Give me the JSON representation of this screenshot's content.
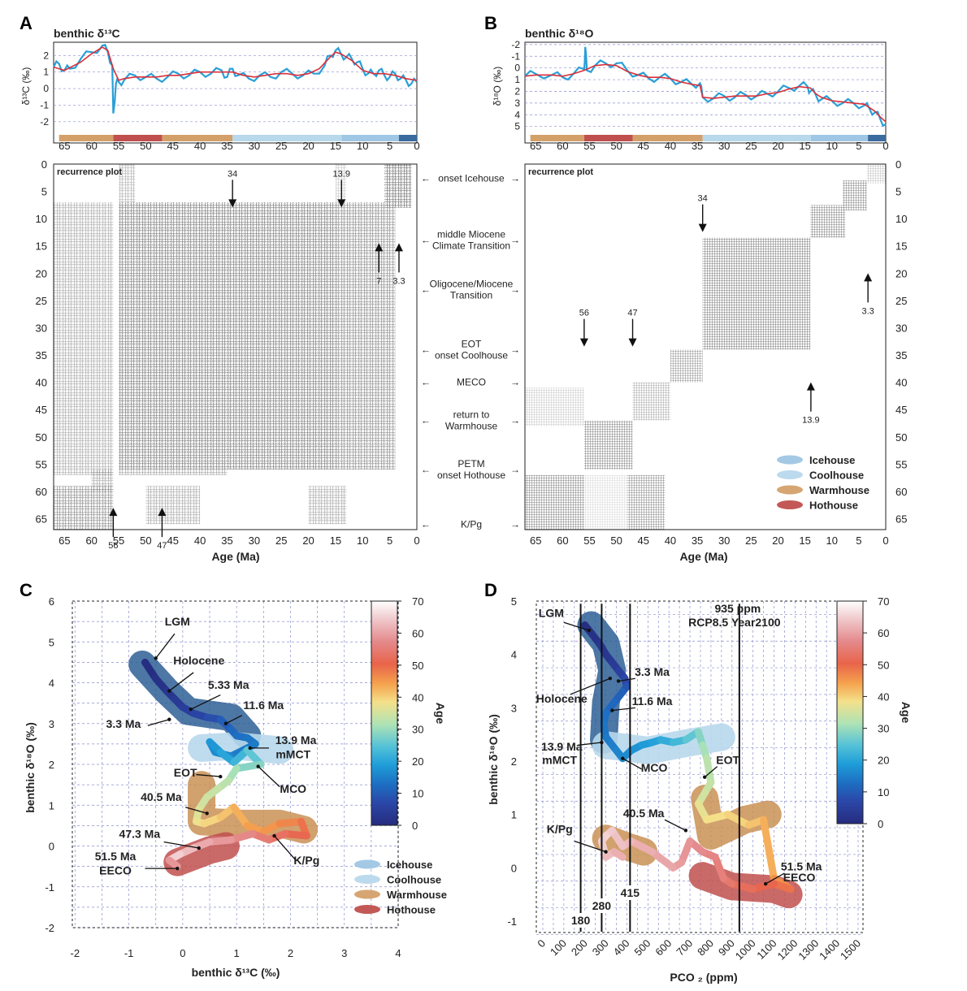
{
  "panels": {
    "A": {
      "label": "A",
      "ts_title": "benthic δ¹³C",
      "ts_ylabel": "δ¹³C (‰)",
      "rp_title": "recurrence plot",
      "xlabel": "Age (Ma)",
      "age_ticks": [
        "65",
        "60",
        "55",
        "50",
        "45",
        "40",
        "35",
        "30",
        "25",
        "20",
        "15",
        "10",
        "5",
        "0"
      ],
      "ts_yticks": [
        "2",
        "1",
        "0",
        "-1",
        "-2"
      ],
      "rp_yticks": [
        "0",
        "5",
        "10",
        "15",
        "20",
        "25",
        "30",
        "35",
        "40",
        "45",
        "50",
        "55",
        "60",
        "65"
      ],
      "arrows": [
        {
          "label": "34",
          "age": 34,
          "dir": "down",
          "y_age": 0.5
        },
        {
          "label": "13.9",
          "age": 13.9,
          "dir": "down",
          "y_age": 0.5
        },
        {
          "label": "7",
          "age": 7,
          "dir": "up",
          "y_age": 14.5
        },
        {
          "label": "3.3",
          "age": 3.3,
          "dir": "up",
          "y_age": 14.5
        },
        {
          "label": "56",
          "age": 56,
          "dir": "up",
          "y_age": 63
        },
        {
          "label": "47",
          "age": 47,
          "dir": "up",
          "y_age": 63
        }
      ]
    },
    "B": {
      "label": "B",
      "ts_title": "benthic δ¹⁸O",
      "ts_ylabel": "δ¹⁸O (‰)",
      "rp_title": "recurrence plot",
      "xlabel": "Age (Ma)",
      "age_ticks": [
        "65",
        "60",
        "55",
        "50",
        "45",
        "40",
        "35",
        "30",
        "25",
        "20",
        "15",
        "10",
        "5",
        "0"
      ],
      "ts_yticks": [
        "-2",
        "-1",
        "0",
        "1",
        "2",
        "3",
        "4",
        "5"
      ],
      "rp_yticks": [
        "0",
        "5",
        "10",
        "15",
        "20",
        "25",
        "30",
        "35",
        "40",
        "45",
        "50",
        "55",
        "60",
        "65"
      ],
      "arrows": [
        {
          "label": "34",
          "age": 34,
          "dir": "down",
          "y_age": 5
        },
        {
          "label": "3.3",
          "age": 3.3,
          "dir": "up",
          "y_age": 20
        },
        {
          "label": "56",
          "age": 56,
          "dir": "down",
          "y_age": 26
        },
        {
          "label": "47",
          "age": 47,
          "dir": "down",
          "y_age": 26
        },
        {
          "label": "13.9",
          "age": 13.9,
          "dir": "up",
          "y_age": 40
        }
      ],
      "legend": [
        "Icehouse",
        "Coolhouse",
        "Warmhouse",
        "Hothouse"
      ]
    },
    "C": {
      "label": "C",
      "xlabel": "benthic δ¹³C (‰)",
      "ylabel": "benthic δ¹⁸O (‰)",
      "xticks": [
        "-2",
        "-1",
        "0",
        "1",
        "2",
        "3",
        "4"
      ],
      "yticks": [
        "6",
        "5",
        "4",
        "3",
        "2",
        "1",
        "0",
        "-1",
        "-2"
      ],
      "colorbar_label": "Age",
      "colorbar_ticks": [
        "70",
        "60",
        "50",
        "40",
        "30",
        "20",
        "10",
        "0"
      ],
      "annotations": [
        "LGM",
        "Holocene",
        "5.33 Ma",
        "3.3 Ma",
        "11.6 Ma",
        "13.9 Ma",
        "mMCT",
        "EOT",
        "MCO",
        "40.5 Ma",
        "47.3 Ma",
        "K/Pg",
        "51.5 Ma",
        "EECO"
      ],
      "legend": [
        "Icehouse",
        "Coolhouse",
        "Warmhouse",
        "Hothouse"
      ]
    },
    "D": {
      "label": "D",
      "xlabel": "PCO ₂ (ppm)",
      "ylabel": "benthic δ¹⁸O (‰)",
      "xticks": [
        "0",
        "100",
        "200",
        "300",
        "400",
        "500",
        "600",
        "700",
        "800",
        "900",
        "1000",
        "1100",
        "1200",
        "1300",
        "1400",
        "1500"
      ],
      "yticks": [
        "5",
        "4",
        "3",
        "2",
        "1",
        "0",
        "-1"
      ],
      "colorbar_label": "Age",
      "colorbar_ticks": [
        "70",
        "60",
        "50",
        "40",
        "30",
        "20",
        "10",
        "0"
      ],
      "annotations": [
        "LGM",
        "Holocene",
        "3.3 Ma",
        "11.6 Ma",
        "13.9 Ma",
        "mMCT",
        "MCO",
        "EOT",
        "40.5 Ma",
        "K/Pg",
        "51.5 Ma",
        "EECO"
      ],
      "vlines": [
        {
          "label": "180",
          "ppm": 180
        },
        {
          "label": "280",
          "ppm": 280
        },
        {
          "label": "415",
          "ppm": 415
        },
        {
          "label": "935 ppm",
          "ppm": 935
        }
      ],
      "vline_note": "RCP8.5 Year2100"
    }
  },
  "climate_events": [
    {
      "label": "onset Icehouse",
      "age": 2.6
    },
    {
      "label": "middle Miocene\nClimate Transition",
      "age": 13.9
    },
    {
      "label": "Oligocene/Miocene\nTransition",
      "age": 23
    },
    {
      "label": "EOT\nonset Coolhouse",
      "age": 34
    },
    {
      "label": "MECO",
      "age": 40
    },
    {
      "label": "return to\nWarmhouse",
      "age": 47
    },
    {
      "label": "PETM\nonset Hothouse",
      "age": 56
    },
    {
      "label": "K/Pg",
      "age": 66
    }
  ],
  "climate_states": [
    {
      "name": "Hothouse",
      "color": "#c0504d",
      "from_age": 56,
      "to_age": 47
    },
    {
      "name": "Warmhouse",
      "color": "#d4a06a",
      "from_age": 66,
      "to_age": 56
    },
    {
      "name": "Warmhouse",
      "color": "#d4a06a",
      "from_age": 47,
      "to_age": 34
    },
    {
      "name": "Coolhouse",
      "color": "#b8d8ec",
      "from_age": 34,
      "to_age": 13.9
    },
    {
      "name": "Icehouse",
      "color": "#9fc6e4",
      "from_age": 13.9,
      "to_age": 3.3
    },
    {
      "name": "Icehouse",
      "color": "#3a6a9e",
      "from_age": 3.3,
      "to_age": 0
    }
  ],
  "chart_data": [
    {
      "panel": "A",
      "type": "line",
      "x_axis": "Age (Ma)",
      "xlim": [
        67,
        0
      ],
      "ylim": [
        -2.5,
        2.8
      ],
      "series": [
        {
          "name": "",
          "color": "#2a9fd6",
          "x": [
            67,
            66,
            65,
            64,
            62,
            60,
            58,
            57,
            56.2,
            56,
            55.5,
            55,
            54,
            52,
            50,
            48,
            46,
            44,
            42,
            40,
            38,
            36,
            35,
            34,
            33,
            31,
            29,
            27,
            25,
            23,
            21,
            19,
            17,
            16,
            15,
            14,
            13,
            12,
            11,
            10,
            9,
            8,
            7,
            6,
            5,
            4,
            3,
            2,
            1,
            0
          ],
          "y": [
            1.3,
            1.5,
            1.1,
            1.2,
            1.8,
            2.2,
            2.6,
            2.2,
            1.4,
            -1.5,
            0.3,
            0.4,
            0.5,
            0.8,
            0.7,
            0.6,
            0.7,
            0.9,
            0.8,
            1.0,
            0.9,
            1.1,
            0.7,
            1.2,
            0.8,
            0.6,
            0.8,
            0.7,
            1.0,
            0.9,
            0.8,
            0.9,
            1.4,
            2.0,
            2.3,
            2.1,
            1.9,
            1.8,
            1.6,
            1.2,
            0.9,
            0.9,
            1.1,
            0.8,
            0.7,
            0.9,
            0.6,
            0.5,
            0.3,
            0.4
          ]
        },
        {
          "name": "",
          "color": "#d9303a",
          "x": [
            67,
            65,
            62,
            60,
            58,
            57,
            56,
            55,
            54,
            52,
            50,
            48,
            46,
            44,
            42,
            40,
            38,
            36,
            34,
            32,
            30,
            28,
            26,
            24,
            22,
            20,
            18,
            16,
            15,
            14,
            13,
            12,
            10,
            8,
            6,
            4,
            2,
            0
          ],
          "y": [
            1.3,
            1.1,
            1.6,
            2.1,
            2.5,
            2.3,
            1.2,
            0.5,
            0.6,
            0.7,
            0.7,
            0.7,
            0.8,
            0.8,
            0.9,
            1.0,
            1.0,
            1.0,
            1.0,
            0.8,
            0.7,
            0.8,
            0.9,
            0.9,
            0.8,
            0.9,
            1.2,
            1.9,
            2.2,
            2.1,
            1.9,
            1.7,
            1.1,
            0.9,
            0.9,
            0.8,
            0.6,
            0.5
          ]
        }
      ]
    },
    {
      "panel": "B",
      "type": "line",
      "x_axis": "Age (Ma)",
      "xlim": [
        67,
        0
      ],
      "ylim": [
        5.3,
        -2.2
      ],
      "y_inverted": true,
      "series": [
        {
          "name": "",
          "color": "#2a9fd6",
          "x": [
            67,
            65,
            62,
            60,
            58,
            56,
            55.8,
            55.5,
            54,
            52,
            50,
            48,
            46,
            44,
            42,
            40,
            38,
            36,
            34.5,
            34,
            32,
            30,
            28,
            26,
            24,
            22,
            20,
            18,
            16,
            14.5,
            14,
            13,
            12,
            10,
            8,
            6,
            4,
            3,
            2,
            1,
            0
          ],
          "y": [
            0.7,
            0.5,
            0.6,
            0.8,
            0.5,
            0.1,
            -1.8,
            0.2,
            -0.2,
            -0.4,
            -0.4,
            0.2,
            0.6,
            0.9,
            0.8,
            0.9,
            1.2,
            1.4,
            1.3,
            2.5,
            2.6,
            2.4,
            2.5,
            2.3,
            2.4,
            2.2,
            2.0,
            1.7,
            1.5,
            1.6,
            2.0,
            2.3,
            2.7,
            2.8,
            3.0,
            3.0,
            3.2,
            3.5,
            3.8,
            4.4,
            4.8
          ]
        },
        {
          "name": "",
          "color": "#d9303a",
          "x": [
            67,
            65,
            62,
            60,
            58,
            56,
            54,
            52,
            50,
            48,
            46,
            44,
            42,
            40,
            38,
            36,
            34.5,
            34,
            32,
            30,
            28,
            26,
            24,
            22,
            20,
            18,
            16,
            14,
            13,
            12,
            10,
            8,
            6,
            4,
            3,
            2,
            1,
            0
          ],
          "y": [
            0.7,
            0.6,
            0.6,
            0.7,
            0.5,
            0.2,
            -0.2,
            -0.3,
            -0.2,
            0.3,
            0.6,
            0.8,
            0.8,
            0.9,
            1.2,
            1.4,
            1.5,
            2.5,
            2.6,
            2.5,
            2.4,
            2.4,
            2.4,
            2.2,
            2.1,
            1.8,
            1.6,
            1.7,
            2.2,
            2.5,
            2.8,
            2.9,
            3.0,
            3.1,
            3.4,
            3.7,
            4.2,
            4.6
          ]
        }
      ]
    },
    {
      "panel": "C",
      "type": "scatter",
      "x_axis": "benthic δ13C (‰)",
      "y_axis": "benthic δ18O (‰)",
      "xlim": [
        -2.2,
        4.0
      ],
      "ylim": [
        -2.1,
        6.0
      ],
      "color_axis": "Age",
      "clim": [
        0,
        70
      ],
      "x": [
        -0.7,
        -0.5,
        -0.3,
        -0.15,
        0.0,
        0.2,
        0.45,
        0.7,
        0.9,
        1.0,
        1.2,
        1.35,
        0.9,
        0.6,
        0.5,
        0.7,
        0.95,
        1.2,
        1.45,
        1.0,
        0.85,
        0.65,
        0.45,
        0.3,
        0.25,
        0.4,
        0.7,
        0.95,
        1.2,
        1.5,
        1.8,
        2.2,
        2.3,
        1.9,
        1.6,
        1.3,
        0.9,
        0.5,
        0.2,
        -0.05,
        -0.25,
        -0.1
      ],
      "y": [
        4.5,
        4.1,
        3.8,
        3.6,
        3.4,
        3.25,
        3.15,
        3.1,
        2.85,
        2.7,
        2.65,
        2.5,
        2.2,
        2.3,
        2.55,
        2.3,
        2.05,
        2.35,
        2.0,
        1.9,
        1.6,
        1.4,
        1.2,
        0.9,
        0.6,
        0.55,
        0.7,
        0.95,
        0.5,
        0.35,
        0.55,
        0.6,
        0.25,
        0.3,
        0.15,
        0.3,
        0.15,
        0.1,
        -0.05,
        -0.2,
        -0.35,
        -0.5
      ],
      "age": [
        0,
        1,
        2,
        3.3,
        4,
        5.3,
        7,
        9,
        11.6,
        12.5,
        13.5,
        13.9,
        15,
        16,
        17,
        19,
        21,
        24,
        27,
        30,
        32,
        33.5,
        34,
        35.5,
        37,
        38.5,
        40.5,
        42,
        44,
        45,
        46,
        48,
        50,
        52,
        54,
        56,
        58,
        60,
        62,
        64,
        66,
        51.5
      ],
      "states": [
        {
          "name": "Icehouse",
          "color": "#3a6a9e"
        },
        {
          "name": "Coolhouse",
          "color": "#b8d8ec"
        },
        {
          "name": "Warmhouse",
          "color": "#d4a06a"
        },
        {
          "name": "Hothouse",
          "color": "#c0504d"
        }
      ]
    },
    {
      "panel": "D",
      "type": "scatter",
      "x_axis": "PCO2 (ppm)",
      "y_axis": "benthic δ18O (‰)",
      "xlim": [
        -20,
        1560
      ],
      "ylim": [
        -1.2,
        5.0
      ],
      "color_axis": "Age",
      "clim": [
        0,
        70
      ],
      "x": [
        200,
        230,
        270,
        300,
        330,
        360,
        390,
        400,
        380,
        340,
        300,
        290,
        300,
        320,
        350,
        380,
        420,
        470,
        520,
        560,
        620,
        680,
        740,
        760,
        780,
        800,
        770,
        740,
        780,
        880,
        980,
        1050,
        1100,
        1180,
        1100,
        1000,
        900,
        860,
        820,
        760,
        700,
        660,
        620,
        520,
        420,
        380,
        330,
        300,
        280,
        300,
        340,
        380
      ],
      "y": [
        4.55,
        4.4,
        4.2,
        4.0,
        3.85,
        3.7,
        3.55,
        3.4,
        3.3,
        3.1,
        2.9,
        2.7,
        2.45,
        2.35,
        2.2,
        2.05,
        2.2,
        2.3,
        2.35,
        2.4,
        2.35,
        2.4,
        2.55,
        2.3,
        2.05,
        1.6,
        1.4,
        1.2,
        0.9,
        1.0,
        0.8,
        0.9,
        -0.2,
        -0.4,
        -0.3,
        -0.4,
        -0.3,
        -0.2,
        0.2,
        0.3,
        0.5,
        0.1,
        0.0,
        0.3,
        0.5,
        0.4,
        0.7,
        0.6,
        0.5,
        0.2,
        0.3,
        0.2
      ],
      "age": [
        0,
        1,
        2,
        3,
        3.3,
        4.5,
        6,
        8,
        10,
        11.6,
        12.5,
        13.5,
        13.9,
        14.5,
        15,
        16,
        17,
        18,
        19,
        20,
        22,
        24,
        27,
        30,
        32,
        33.5,
        34,
        36,
        38,
        39,
        40.5,
        42,
        44,
        48,
        50,
        51.5,
        53,
        55,
        56,
        57,
        58,
        59,
        60,
        61,
        62,
        63,
        64,
        65,
        66,
        64,
        62,
        61
      ],
      "states": [
        {
          "name": "Icehouse",
          "color": "#3a6a9e"
        },
        {
          "name": "Coolhouse",
          "color": "#b8d8ec"
        },
        {
          "name": "Warmhouse",
          "color": "#d4a06a"
        },
        {
          "name": "Hothouse",
          "color": "#c0504d"
        }
      ]
    }
  ]
}
